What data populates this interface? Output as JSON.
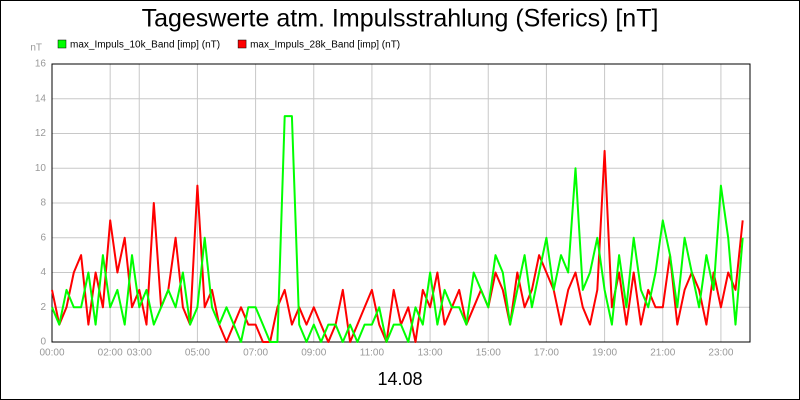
{
  "chart_data": {
    "type": "line",
    "title": "Tageswerte atm. Impulsstrahlung (Sferics) [nT]",
    "y_label": "nT",
    "x_label": "14.08",
    "x": [
      0,
      0.25,
      0.5,
      0.75,
      1,
      1.25,
      1.5,
      1.75,
      2,
      2.25,
      2.5,
      2.75,
      3,
      3.25,
      3.5,
      3.75,
      4,
      4.25,
      4.5,
      4.75,
      5,
      5.25,
      5.5,
      5.75,
      6,
      6.25,
      6.5,
      6.75,
      7,
      7.25,
      7.5,
      7.75,
      8,
      8.25,
      8.5,
      8.75,
      9,
      9.25,
      9.5,
      9.75,
      10,
      10.25,
      10.5,
      10.75,
      11,
      11.25,
      11.5,
      11.75,
      12,
      12.25,
      12.5,
      12.75,
      13,
      13.25,
      13.5,
      13.75,
      14,
      14.25,
      14.5,
      14.75,
      15,
      15.25,
      15.5,
      15.75,
      16,
      16.25,
      16.5,
      16.75,
      17,
      17.25,
      17.5,
      17.75,
      18,
      18.25,
      18.5,
      18.75,
      19,
      19.25,
      19.5,
      19.75,
      20,
      20.25,
      20.5,
      20.75,
      21,
      21.25,
      21.5,
      21.75,
      22,
      22.25,
      22.5,
      22.75,
      23,
      23.25,
      23.5,
      23.75
    ],
    "series": [
      {
        "name": "max_Impuls_10k_Band [imp] (nT)",
        "color": "#00ff00",
        "values": [
          2,
          1,
          3,
          2,
          2,
          4,
          1,
          5,
          2,
          3,
          1,
          5,
          2,
          3,
          1,
          2,
          3,
          2,
          4,
          1,
          2,
          6,
          2,
          1,
          2,
          1,
          0,
          2,
          2,
          1,
          0,
          0,
          13,
          13,
          1,
          0,
          1,
          0,
          1,
          1,
          0,
          1,
          0,
          1,
          1,
          2,
          0,
          1,
          1,
          0,
          2,
          1,
          4,
          1,
          3,
          2,
          2,
          1,
          4,
          3,
          2,
          5,
          4,
          1,
          3,
          5,
          2,
          4,
          6,
          3,
          5,
          4,
          10,
          3,
          4,
          6,
          3,
          1,
          5,
          2,
          6,
          3,
          2,
          4,
          7,
          5,
          2,
          6,
          4,
          2,
          5,
          3,
          9,
          6,
          1,
          6
        ]
      },
      {
        "name": "max_Impuls_28k_Band [imp] (nT)",
        "color": "#ff0000",
        "values": [
          3,
          1,
          2,
          4,
          5,
          1,
          4,
          2,
          7,
          4,
          6,
          2,
          3,
          1,
          8,
          2,
          3,
          6,
          2,
          1,
          9,
          2,
          3,
          1,
          0,
          1,
          2,
          1,
          1,
          0,
          0,
          2,
          3,
          1,
          2,
          1,
          2,
          1,
          0,
          1,
          3,
          0,
          1,
          2,
          3,
          1,
          0,
          3,
          1,
          2,
          0,
          3,
          2,
          4,
          1,
          2,
          3,
          1,
          2,
          3,
          2,
          4,
          3,
          1,
          4,
          2,
          3,
          5,
          4,
          3,
          1,
          3,
          4,
          2,
          1,
          3,
          11,
          2,
          4,
          1,
          4,
          1,
          3,
          2,
          2,
          5,
          1,
          3,
          4,
          3,
          1,
          4,
          2,
          4,
          3,
          7
        ]
      }
    ],
    "xlim": [
      0,
      24
    ],
    "xticks": [
      {
        "value": 0,
        "label": "00:00"
      },
      {
        "value": 2,
        "label": "02:00"
      },
      {
        "value": 3,
        "label": "03:00"
      },
      {
        "value": 5,
        "label": "05:00"
      },
      {
        "value": 7,
        "label": "07:00"
      },
      {
        "value": 9,
        "label": "09:00"
      },
      {
        "value": 11,
        "label": "11:00"
      },
      {
        "value": 13,
        "label": "13:00"
      },
      {
        "value": 15,
        "label": "15:00"
      },
      {
        "value": 17,
        "label": "17:00"
      },
      {
        "value": 19,
        "label": "19:00"
      },
      {
        "value": 21,
        "label": "21:00"
      },
      {
        "value": 23,
        "label": "23:00"
      }
    ],
    "ylim": [
      0,
      16
    ],
    "yticks": [
      0,
      2,
      4,
      6,
      8,
      10,
      12,
      14,
      16
    ],
    "grid": true,
    "legend": "top-left"
  }
}
